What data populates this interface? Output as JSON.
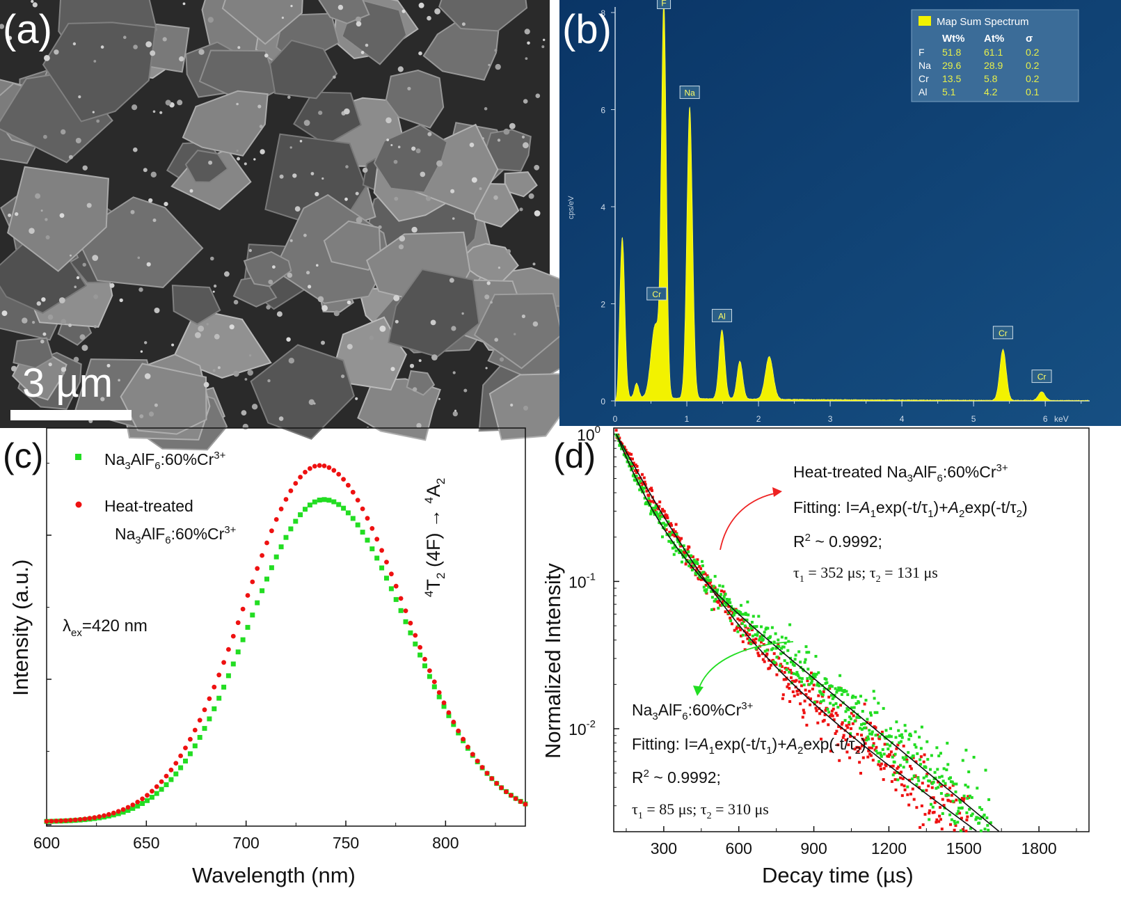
{
  "panels": {
    "a": {
      "label": "(a)",
      "scalebar": "3 µm"
    },
    "b": {
      "label": "(b)"
    },
    "c": {
      "label": "(c)"
    },
    "d": {
      "label": "(d)"
    }
  },
  "colors": {
    "green": "#22dd22",
    "red": "#ee1111",
    "eds_bg": "#0e3f6e",
    "eds_fill": "#f2f200",
    "fit_line": "#111111"
  },
  "chart_data": [
    {
      "id": "b",
      "type": "area",
      "xlabel": "keV",
      "ylabel": "cps/eV",
      "xlim": [
        0,
        6.6
      ],
      "ylim": [
        0,
        8
      ],
      "xticks": [
        "0",
        "1",
        "2",
        "3",
        "4",
        "5",
        "6"
      ],
      "yticks": [
        "0",
        "2",
        "4",
        "6",
        "8"
      ],
      "legend": {
        "title": "Map Sum Spectrum",
        "columns": [
          "Wt%",
          "At%",
          "σ"
        ],
        "rows": [
          {
            "el": "F",
            "wt": "51.8",
            "at": "61.1",
            "s": "0.2"
          },
          {
            "el": "Na",
            "wt": "29.6",
            "at": "28.9",
            "s": "0.2"
          },
          {
            "el": "Cr",
            "wt": "13.5",
            "at": "5.8",
            "s": "0.2"
          },
          {
            "el": "Al",
            "wt": "5.1",
            "at": "4.2",
            "s": "0.1"
          }
        ]
      },
      "peaks": [
        {
          "x": 0.1,
          "y": 3.3,
          "w": 0.035
        },
        {
          "x": 0.3,
          "y": 0.3,
          "w": 0.03
        },
        {
          "x": 0.56,
          "y": 1.5,
          "w": 0.06
        },
        {
          "x": 0.68,
          "y": 8.0,
          "w": 0.035
        },
        {
          "x": 1.04,
          "y": 6.0,
          "w": 0.04
        },
        {
          "x": 1.49,
          "y": 1.42,
          "w": 0.04
        },
        {
          "x": 1.74,
          "y": 0.78,
          "w": 0.04
        },
        {
          "x": 2.15,
          "y": 0.88,
          "w": 0.055
        },
        {
          "x": 5.41,
          "y": 1.05,
          "w": 0.045
        },
        {
          "x": 5.95,
          "y": 0.18,
          "w": 0.045
        }
      ],
      "baseline": 0.07,
      "peak_labels": [
        {
          "text": "F",
          "x": 0.68,
          "y": 8.05
        },
        {
          "text": "Na",
          "x": 1.04,
          "y": 6.2
        },
        {
          "text": "Cr",
          "x": 0.58,
          "y": 2.05
        },
        {
          "text": "Al",
          "x": 1.49,
          "y": 1.6
        },
        {
          "text": "Cr",
          "x": 5.41,
          "y": 1.25
        },
        {
          "text": "Cr",
          "x": 5.95,
          "y": 0.35
        }
      ]
    },
    {
      "id": "c",
      "type": "scatter",
      "xlabel": "Wavelength (nm)",
      "ylabel": "Intensity (a.u.)",
      "xlim": [
        600,
        840
      ],
      "xticks": [
        600,
        650,
        700,
        750,
        800
      ],
      "ylim": [
        0,
        1.05
      ],
      "series": [
        {
          "name": "Na3AlF6:60%Cr3+",
          "color": "green",
          "marker": "square",
          "peak_x": 739,
          "peak_y": 0.85,
          "sigma_l": 38,
          "sigma_r": 42
        },
        {
          "name": "Heat-treated Na3AlF6:60%Cr3+",
          "color": "red",
          "marker": "circle",
          "peak_x": 737,
          "peak_y": 0.94,
          "sigma_l": 38,
          "sigma_r": 42
        }
      ],
      "x_step": 2.4,
      "annotations": {
        "lambda": "λex=420 nm",
        "transition": "4T2(4F) → 4A2"
      }
    },
    {
      "id": "d",
      "type": "scatter",
      "xlabel": "Decay time (µs)",
      "ylabel": "Normalized Intensity",
      "xlim": [
        100,
        2000
      ],
      "xticks": [
        300,
        600,
        900,
        1200,
        1500,
        1800
      ],
      "yscale": "log",
      "ylim": [
        0.002,
        1.1
      ],
      "yticks": [
        "10^0",
        "10^-1",
        "10^-2"
      ],
      "series": [
        {
          "name": "Heat-treated Na3AlF6:60%Cr3+",
          "color": "red",
          "A1": 0.12,
          "tau1": 352,
          "A2": 0.88,
          "tau2": 131,
          "tau_label": "τ1 = 352 µs; τ2 = 131 µs"
        },
        {
          "name": "Na3AlF6:60%Cr3+",
          "color": "green",
          "A1": 0.72,
          "tau1": 85,
          "A2": 0.28,
          "tau2": 310,
          "tau_label": "τ1 = 85 µs; τ2 = 310 µs"
        }
      ],
      "fit_text": "Fitting: I=A1exp(-t/τ1)+A2exp(-t/τ2)",
      "r2_text": "R2 ~ 0.9992;"
    }
  ]
}
